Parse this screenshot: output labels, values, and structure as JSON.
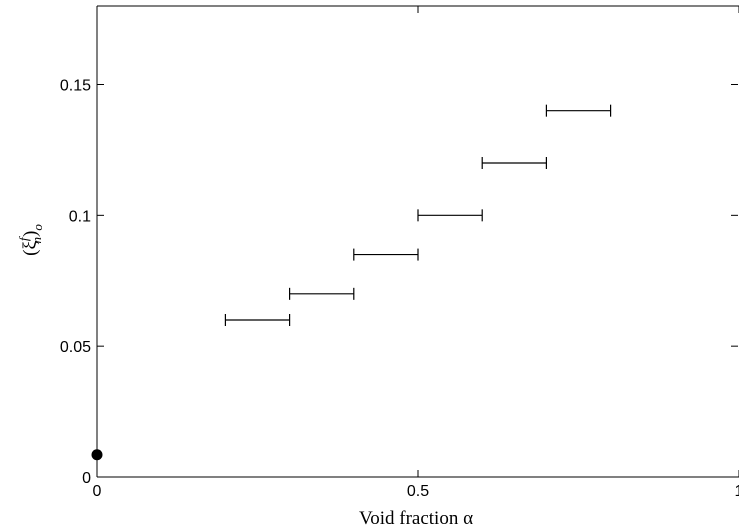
{
  "chart_data": {
    "type": "scatter",
    "title": "",
    "xlabel": "Void fraction α",
    "ylabel": "(ξnf)o",
    "ylabel_parts": {
      "base": "(ξ",
      "sub": "n",
      "sup": "f",
      "close": ")",
      "outer_sub": "o"
    },
    "xlim": [
      0,
      1
    ],
    "ylim": [
      0,
      0.18
    ],
    "xticks": [
      0,
      0.5,
      1
    ],
    "xtick_labels": [
      "0",
      "0.5",
      "1"
    ],
    "yticks": [
      0,
      0.05,
      0.1,
      0.15
    ],
    "ytick_labels": [
      "0",
      "0.05",
      "0.1",
      "0.15"
    ],
    "grid": false,
    "series": [
      {
        "marker": "interval",
        "intervals": [
          {
            "x_start": 0.2,
            "x_end": 0.3,
            "y": 0.06
          },
          {
            "x_start": 0.3,
            "x_end": 0.4,
            "y": 0.07
          },
          {
            "x_start": 0.4,
            "x_end": 0.5,
            "y": 0.085
          },
          {
            "x_start": 0.5,
            "x_end": 0.6,
            "y": 0.1
          },
          {
            "x_start": 0.6,
            "x_end": 0.7,
            "y": 0.12
          },
          {
            "x_start": 0.7,
            "x_end": 0.8,
            "y": 0.14
          }
        ]
      },
      {
        "marker": "filled-circle",
        "points": [
          {
            "x": 0,
            "y": 0.0085
          }
        ]
      }
    ]
  }
}
